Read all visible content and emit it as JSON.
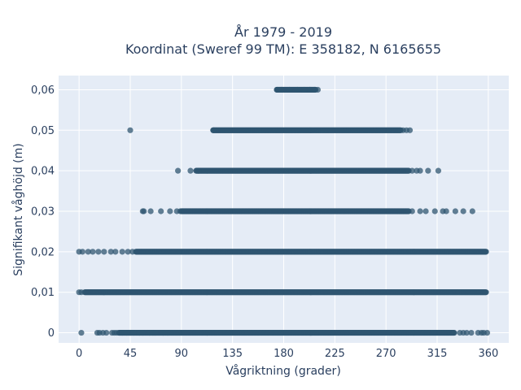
{
  "chart_data": {
    "type": "scatter",
    "title": "År 1979 - 2019",
    "subtitle": "Koordinat (Sweref 99 TM): E 358182, N 6165655",
    "xlabel": "Vågriktning (grader)",
    "ylabel": "Signifikant våghöjd (m)",
    "xlim": [
      -18,
      378
    ],
    "ylim": [
      -0.0025,
      0.0635
    ],
    "x_ticks": [
      0,
      45,
      90,
      135,
      180,
      225,
      270,
      315,
      360
    ],
    "x_tick_labels": [
      "0",
      "45",
      "90",
      "135",
      "180",
      "225",
      "270",
      "315",
      "360"
    ],
    "y_ticks": [
      0,
      0.01,
      0.02,
      0.03,
      0.04,
      0.05,
      0.06
    ],
    "y_tick_labels": [
      "0",
      "0,01",
      "0,02",
      "0,03",
      "0,04",
      "0,05",
      "0,06"
    ],
    "grid": true,
    "marker_color": "#2f5570",
    "background_color": "#e5ecf6",
    "bands": [
      {
        "y": 0.06,
        "dense": [
          [
            174,
            208
          ]
        ],
        "sparse": [
          174,
          178,
          185,
          192,
          198,
          203,
          207,
          210
        ]
      },
      {
        "y": 0.05,
        "dense": [
          [
            118,
            283
          ]
        ],
        "sparse": [
          45,
          118,
          285,
          288,
          291
        ]
      },
      {
        "y": 0.04,
        "dense": [
          [
            103,
            290
          ]
        ],
        "sparse": [
          87,
          98,
          105,
          293,
          297,
          300,
          307,
          316
        ]
      },
      {
        "y": 0.03,
        "dense": [
          [
            90,
            290
          ]
        ],
        "sparse": [
          56,
          57,
          63,
          72,
          80,
          86,
          89,
          293,
          300,
          305,
          313,
          320,
          323,
          331,
          338,
          346
        ]
      },
      {
        "y": 0.02,
        "dense": [
          [
            50,
            358
          ]
        ],
        "sparse": [
          0,
          3,
          8,
          12,
          17,
          22,
          28,
          32,
          38,
          43,
          47
        ]
      },
      {
        "y": 0.01,
        "dense": [
          [
            5,
            358
          ]
        ],
        "sparse": [
          0,
          2
        ]
      },
      {
        "y": 0.0,
        "dense": [
          [
            35,
            330
          ]
        ],
        "sparse": [
          2,
          16,
          18,
          21,
          24,
          29,
          31,
          33,
          38,
          42,
          45,
          48,
          53,
          56,
          62,
          65,
          67,
          74,
          78,
          335,
          338,
          341,
          345,
          351,
          354,
          356,
          359
        ]
      }
    ]
  }
}
